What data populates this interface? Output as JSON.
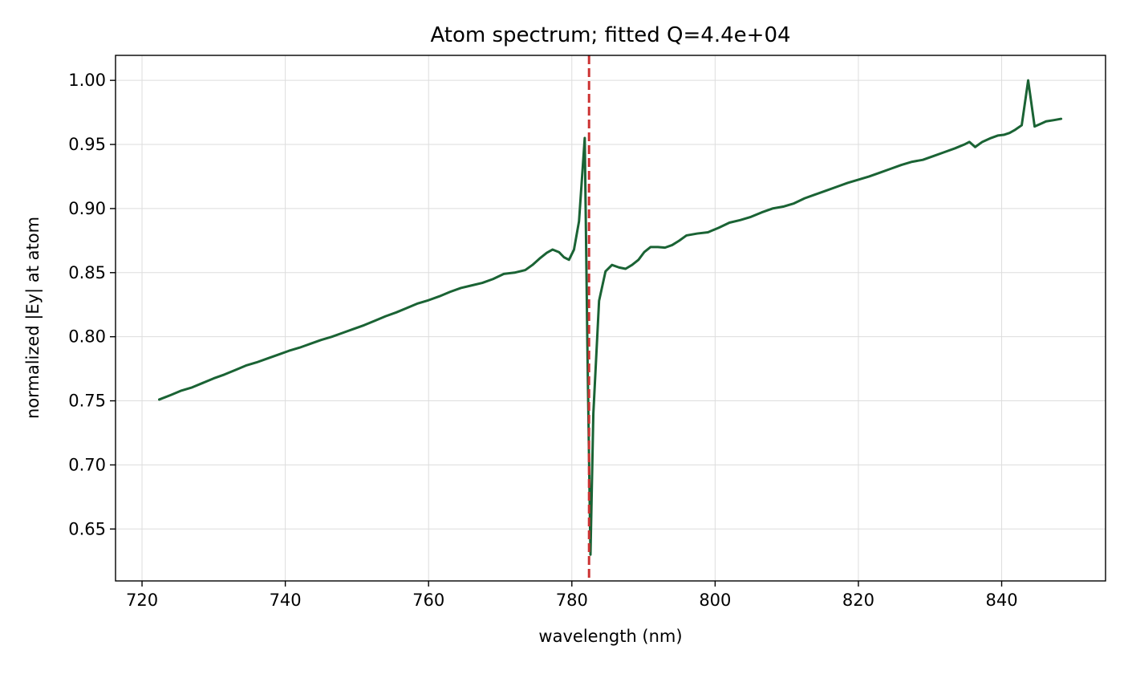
{
  "chart_data": {
    "type": "line",
    "title": "Atom spectrum; fitted Q=4.4e+04",
    "xlabel": "wavelength (nm)",
    "ylabel": "normalized |Ey| at atom",
    "xlim": [
      716.3,
      854.5
    ],
    "ylim": [
      0.6095,
      1.0195
    ],
    "xticks": [
      720,
      740,
      760,
      780,
      800,
      820,
      840
    ],
    "yticks": [
      0.65,
      0.7,
      0.75,
      0.8,
      0.85,
      0.9,
      0.95,
      1.0
    ],
    "xtick_labels": [
      "720",
      "740",
      "760",
      "780",
      "800",
      "820",
      "840"
    ],
    "ytick_labels": [
      "0.65",
      "0.70",
      "0.75",
      "0.80",
      "0.85",
      "0.90",
      "0.95",
      "1.00"
    ],
    "grid": true,
    "legend": "none",
    "series": [
      {
        "color": "#1a6334",
        "x": [
          722.4,
          724.0,
          725.5,
          727.0,
          728.5,
          730.0,
          731.5,
          733.0,
          734.5,
          736.0,
          737.5,
          739.0,
          740.5,
          742.0,
          743.5,
          745.0,
          746.5,
          748.0,
          749.5,
          751.0,
          752.5,
          754.0,
          755.5,
          757.0,
          758.5,
          760.0,
          761.5,
          763.0,
          764.5,
          766.0,
          767.5,
          769.0,
          770.5,
          772.0,
          773.5,
          774.5,
          775.5,
          776.5,
          777.3,
          778.2,
          778.9,
          779.6,
          780.3,
          781.0,
          781.8,
          782.2,
          782.6,
          783.0,
          783.8,
          784.7,
          785.6,
          786.6,
          787.5,
          788.4,
          789.3,
          790.1,
          791.0,
          792.0,
          793.0,
          794.0,
          795.0,
          796.0,
          797.5,
          799.0,
          800.5,
          802.0,
          803.5,
          805.0,
          806.5,
          808.0,
          809.5,
          811.0,
          812.5,
          814.0,
          815.5,
          817.0,
          818.5,
          820.0,
          821.5,
          823.0,
          824.5,
          826.0,
          827.5,
          829.0,
          830.5,
          832.0,
          833.5,
          834.8,
          835.5,
          836.3,
          837.3,
          838.5,
          839.5,
          840.3,
          841.1,
          841.9,
          842.8,
          843.7,
          844.6,
          845.4,
          846.2,
          847.3,
          848.3
        ],
        "y": [
          0.751,
          0.7545,
          0.758,
          0.7605,
          0.764,
          0.7675,
          0.7705,
          0.774,
          0.7775,
          0.78,
          0.783,
          0.786,
          0.789,
          0.7915,
          0.7945,
          0.7975,
          0.8,
          0.803,
          0.806,
          0.809,
          0.8125,
          0.816,
          0.819,
          0.8225,
          0.826,
          0.8285,
          0.8315,
          0.835,
          0.838,
          0.84,
          0.842,
          0.845,
          0.849,
          0.85,
          0.852,
          0.856,
          0.861,
          0.8655,
          0.868,
          0.866,
          0.862,
          0.86,
          0.868,
          0.89,
          0.955,
          0.78,
          0.63,
          0.74,
          0.828,
          0.851,
          0.856,
          0.854,
          0.853,
          0.856,
          0.86,
          0.866,
          0.87,
          0.87,
          0.8695,
          0.8715,
          0.875,
          0.879,
          0.8805,
          0.8815,
          0.885,
          0.889,
          0.891,
          0.8935,
          0.897,
          0.9,
          0.9015,
          0.904,
          0.908,
          0.911,
          0.914,
          0.917,
          0.92,
          0.9225,
          0.925,
          0.928,
          0.931,
          0.934,
          0.9365,
          0.938,
          0.941,
          0.944,
          0.947,
          0.95,
          0.952,
          0.948,
          0.952,
          0.955,
          0.957,
          0.9575,
          0.959,
          0.9615,
          0.965,
          1.0,
          0.964,
          0.966,
          0.968,
          0.969,
          0.97
        ]
      }
    ],
    "annotations": [
      {
        "type": "vline",
        "x": 782.4,
        "color": "#cc3333",
        "style": "dashed"
      }
    ]
  }
}
